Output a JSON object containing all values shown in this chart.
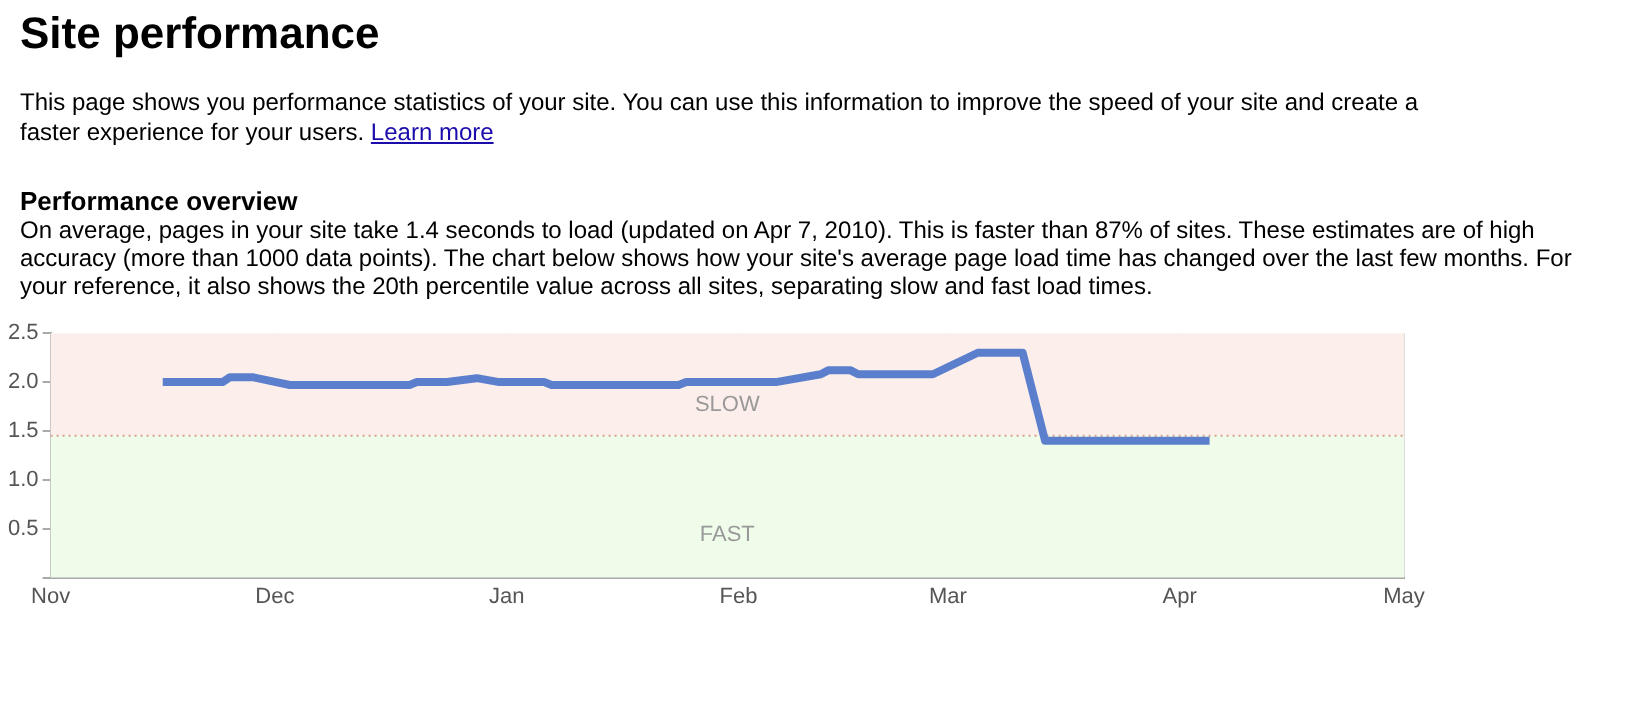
{
  "chart_data": {
    "type": "line",
    "title": "Site performance",
    "subtitle": "This page shows you performance statistics of your site. You can use this information to improve the speed of your site and create a faster experience for your users.",
    "annotations": [
      "Learn more",
      "Performance overview",
      "On average, pages in your site take 1.4 seconds to load (updated on Apr 7, 2010). This is faster than 87% of sites. These estimates are of high accuracy (more than 1000 data points). The chart below shows how your site's average page load time has changed over the last few months. For your reference, it also shows the 20th percentile value across all sites, separating slow and fast load times."
    ],
    "x": [
      "2009-11-16",
      "2009-11-24",
      "2009-11-25",
      "2009-11-28",
      "2009-12-03",
      "2009-12-19",
      "2009-12-20",
      "2009-12-24",
      "2009-12-28",
      "2009-12-31",
      "2010-01-06",
      "2010-01-07",
      "2010-01-24",
      "2010-01-25",
      "2010-02-06",
      "2010-02-12",
      "2010-02-13",
      "2010-02-16",
      "2010-02-17",
      "2010-02-27",
      "2010-03-05",
      "2010-03-11",
      "2010-03-14",
      "2010-04-05"
    ],
    "series": [
      {
        "color": "#5b7fcc",
        "values": [
          2.0,
          2.0,
          2.05,
          2.05,
          1.97,
          1.97,
          2.0,
          2.0,
          2.04,
          2.0,
          2.0,
          1.97,
          1.97,
          2.0,
          2.0,
          2.08,
          2.12,
          2.12,
          2.08,
          2.08,
          2.3,
          2.3,
          1.4,
          1.4
        ]
      }
    ],
    "xlim": [
      "2009-11-01",
      "2010-05-01"
    ],
    "xticks": [
      {
        "value": "2009-11-01",
        "label": "Nov"
      },
      {
        "value": "2009-12-01",
        "label": "Dec"
      },
      {
        "value": "2010-01-01",
        "label": "Jan"
      },
      {
        "value": "2010-02-01",
        "label": "Feb"
      },
      {
        "value": "2010-03-01",
        "label": "Mar"
      },
      {
        "value": "2010-04-01",
        "label": "Apr"
      },
      {
        "value": "2010-05-01",
        "label": "May"
      }
    ],
    "ylim": [
      0,
      2.5
    ],
    "yticks": [
      {
        "value": 0,
        "label": null
      },
      {
        "value": 0.5,
        "label": "0.5"
      },
      {
        "value": 1,
        "label": "1.0"
      },
      {
        "value": 1.5,
        "label": "1.5"
      },
      {
        "value": 2,
        "label": "2.0"
      },
      {
        "value": 2.5,
        "label": "2.5"
      }
    ],
    "bands": [
      {
        "axis": "y",
        "from": 1.45,
        "to": 2.5,
        "label": "SLOW",
        "color": "#fcefeb"
      },
      {
        "axis": "y",
        "from": 0,
        "to": 1.45,
        "label": "FAST",
        "color": "#effcea"
      }
    ],
    "ref_lines": [
      {
        "axis": "y",
        "value": 1.45,
        "color": "#d9a08a",
        "line_style": "dotted"
      }
    ],
    "grid": "x",
    "legend": false,
    "marker": "none",
    "line_style": "solid"
  }
}
